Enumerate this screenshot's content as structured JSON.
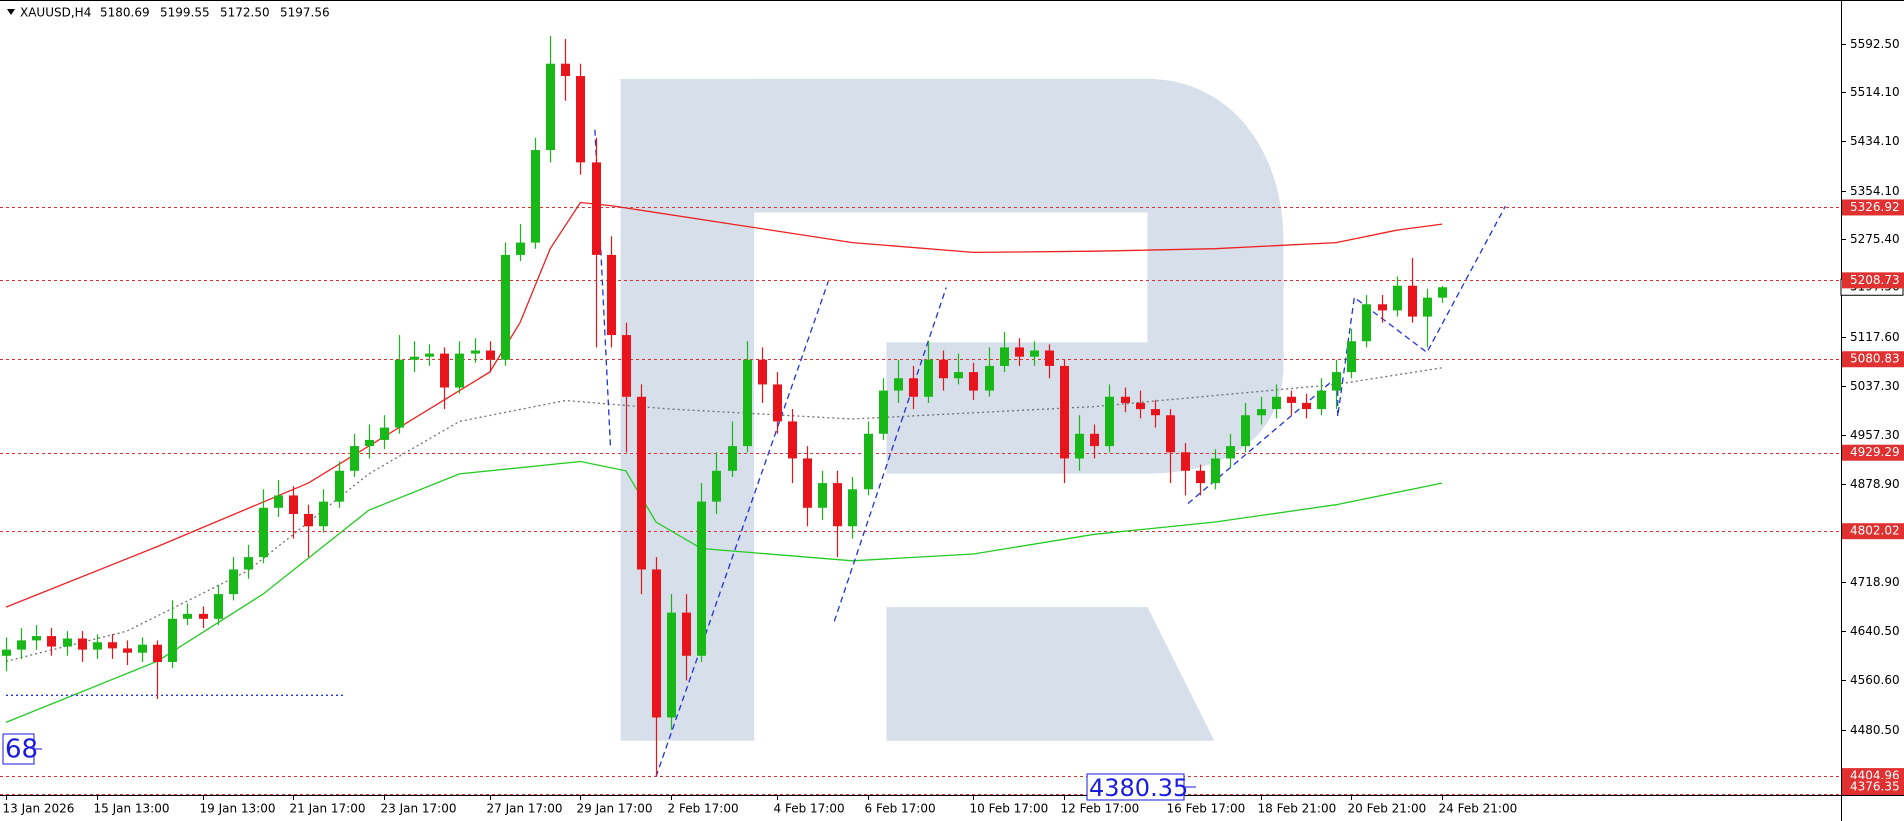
{
  "chart_data": {
    "type": "candlestick",
    "title": "XAUUSD,H4",
    "header_values": [
      "5180.69",
      "5199.55",
      "5172.50",
      "5197.56"
    ],
    "categories": [
      "13 Jan 2026",
      null,
      null,
      null,
      null,
      null,
      "15 Jan 13:00",
      null,
      null,
      null,
      null,
      null,
      null,
      "19 Jan 13:00",
      null,
      null,
      null,
      null,
      null,
      "21 Jan 17:00",
      null,
      null,
      null,
      null,
      null,
      "23 Jan 17:00",
      null,
      null,
      null,
      null,
      null,
      null,
      "27 Jan 17:00",
      null,
      null,
      null,
      null,
      null,
      "29 Jan 17:00",
      null,
      null,
      null,
      null,
      null,
      "2 Feb 17:00",
      null,
      null,
      null,
      null,
      null,
      null,
      "4 Feb 17:00",
      null,
      null,
      null,
      null,
      null,
      "6 Feb 17:00",
      null,
      null,
      null,
      null,
      null,
      null,
      "10 Feb 17:00",
      null,
      null,
      null,
      null,
      null,
      "12 Feb 17:00",
      null,
      null,
      null,
      null,
      null,
      null,
      "16 Feb 17:00",
      null,
      null,
      null,
      null,
      null,
      "18 Feb 21:00",
      null,
      null,
      null,
      null,
      null,
      "20 Feb 21:00",
      null,
      null,
      null,
      null,
      null,
      "24 Feb 21:00"
    ],
    "open": [
      4600,
      4610,
      4625,
      4632,
      4615,
      4628,
      4610,
      4622,
      4612,
      4605,
      4618,
      4590,
      4660,
      4668,
      4660,
      4700,
      4740,
      4760,
      4840,
      4860,
      4830,
      4810,
      4850,
      4900,
      4940,
      4950,
      4970,
      5080,
      5085,
      5090,
      5035,
      5090,
      5095,
      5080,
      5250,
      5270,
      5420,
      5560,
      5540,
      5400,
      5250,
      5120,
      5020,
      4740,
      4500,
      4670,
      4600,
      4850,
      4900,
      4940,
      5080,
      5040,
      4980,
      4920,
      4840,
      4880,
      4810,
      4870,
      4960,
      5030,
      5050,
      5020,
      5080,
      5050,
      5060,
      5030,
      5070,
      5100,
      5085,
      5095,
      5070,
      4920,
      4960,
      4940,
      5020,
      5010,
      5000,
      4990,
      4930,
      4900,
      4880,
      4920,
      4940,
      4990,
      5000,
      5020,
      5010,
      5000,
      5030,
      5060,
      5110,
      5170,
      5160,
      5200,
      5150,
      5180.69
    ],
    "high": [
      4630,
      4645,
      4650,
      4645,
      4640,
      4640,
      4635,
      4635,
      4625,
      4630,
      4625,
      4690,
      4685,
      4680,
      4715,
      4760,
      4780,
      4870,
      4885,
      4875,
      4845,
      4870,
      4915,
      4960,
      4975,
      4990,
      5120,
      5110,
      5105,
      5100,
      5110,
      5115,
      5110,
      5270,
      5300,
      5440,
      5605,
      5600,
      5560,
      5440,
      5280,
      5140,
      5040,
      4760,
      4700,
      4700,
      4880,
      4930,
      4980,
      5110,
      5100,
      5060,
      5000,
      4940,
      4900,
      4900,
      4890,
      4980,
      5050,
      5080,
      5070,
      5110,
      5095,
      5090,
      5075,
      5100,
      5125,
      5115,
      5110,
      5105,
      5080,
      4990,
      4975,
      5040,
      5035,
      5030,
      5015,
      5000,
      4945,
      4910,
      4935,
      4960,
      5010,
      5020,
      5040,
      5030,
      5025,
      5050,
      5080,
      5130,
      5185,
      5185,
      5215,
      5245,
      5195,
      5199.55
    ],
    "low": [
      4575,
      4595,
      4610,
      4600,
      4600,
      4590,
      4595,
      4595,
      4585,
      4590,
      4530,
      4580,
      4650,
      4645,
      4650,
      4690,
      4725,
      4750,
      4825,
      4790,
      4760,
      4800,
      4840,
      4890,
      4920,
      4935,
      4960,
      5060,
      5070,
      5000,
      5025,
      5075,
      5060,
      5070,
      5240,
      5260,
      5400,
      5500,
      5380,
      5100,
      5100,
      4930,
      4700,
      4405,
      4480,
      4560,
      4590,
      4830,
      4890,
      4930,
      5010,
      4960,
      4880,
      4810,
      4820,
      4760,
      4790,
      4860,
      4950,
      5010,
      5000,
      5010,
      5030,
      5040,
      5015,
      5020,
      5060,
      5070,
      5070,
      5050,
      4880,
      4900,
      4920,
      4930,
      4995,
      4985,
      4970,
      4880,
      4860,
      4860,
      4870,
      4905,
      4930,
      4975,
      4985,
      4990,
      4985,
      4990,
      5000,
      5050,
      5100,
      5140,
      5150,
      5140,
      5100,
      5172.5
    ],
    "close": [
      4610,
      4625,
      4632,
      4615,
      4628,
      4610,
      4622,
      4612,
      4605,
      4618,
      4590,
      4660,
      4668,
      4660,
      4700,
      4740,
      4760,
      4840,
      4860,
      4830,
      4810,
      4850,
      4900,
      4940,
      4950,
      4970,
      5080,
      5085,
      5090,
      5035,
      5090,
      5095,
      5080,
      5250,
      5270,
      5420,
      5560,
      5540,
      5400,
      5250,
      5120,
      5020,
      4740,
      4500,
      4670,
      4600,
      4850,
      4900,
      4940,
      5080,
      5040,
      4980,
      4920,
      4840,
      4880,
      4810,
      4870,
      4960,
      5030,
      5050,
      5020,
      5080,
      5050,
      5060,
      5030,
      5070,
      5100,
      5085,
      5095,
      5070,
      4920,
      4960,
      4940,
      5020,
      5010,
      5000,
      4990,
      4930,
      4900,
      4880,
      4920,
      4940,
      4990,
      5000,
      5020,
      5010,
      5000,
      5030,
      5060,
      5110,
      5170,
      5160,
      5200,
      5150,
      5180.69,
      5197.56
    ],
    "up_color": "#17b817",
    "down_color": "#e8141c",
    "lines": [
      {
        "color": "#ee2020",
        "style": "solid",
        "x": [
          0,
          10,
          20,
          28,
          32,
          34,
          36,
          38,
          40,
          48,
          56,
          64,
          72,
          80,
          88,
          92,
          95
        ],
        "values": [
          4679,
          4777,
          4880,
          5000,
          5060,
          5140,
          5260,
          5335,
          5330,
          5300,
          5270,
          5254,
          5256,
          5260,
          5270,
          5290,
          5300
        ]
      },
      {
        "color": "#22cc22",
        "style": "solid",
        "x": [
          0,
          10,
          17,
          24,
          30,
          38,
          41,
          43,
          46,
          56,
          64,
          72,
          80,
          88,
          95
        ],
        "values": [
          4492,
          4591,
          4700,
          4836,
          4895,
          4915,
          4900,
          4817,
          4774,
          4754,
          4765,
          4797,
          4817,
          4845,
          4880
        ]
      },
      {
        "color": "#707070",
        "style": "dotted",
        "x": [
          0,
          8,
          16,
          24,
          30,
          37,
          44,
          56,
          72,
          88,
          95
        ],
        "values": [
          4591,
          4640,
          4738,
          4895,
          4980,
          5014,
          5000,
          4984,
          5004,
          5040,
          5067
        ]
      },
      {
        "color": "#2233dd",
        "style": "dashed",
        "x": [
          38.96,
          40
        ],
        "values": [
          5453,
          4935
        ]
      },
      {
        "color": "#2233dd",
        "style": "dashed",
        "x": [
          43,
          54.4
        ],
        "values": [
          4404,
          5207
        ]
      },
      {
        "color": "#2233dd",
        "style": "dashed",
        "x": [
          54.8,
          62.2
        ],
        "values": [
          4656,
          5197
        ]
      },
      {
        "color": "#2233dd",
        "style": "dashed",
        "x": [
          78.2,
          88.1,
          88.1,
          89.2,
          94,
          99.2
        ],
        "values": [
          4847,
          5053,
          4988,
          5181,
          5092,
          5329
        ]
      },
      {
        "color": "#2233dd",
        "style": "dotted",
        "x": [
          0,
          22.5
        ],
        "values": [
          4536,
          4536
        ]
      }
    ],
    "levels": [
      5326.92,
      5208.73,
      5080.83,
      4929.29,
      4802.02,
      4404.96,
      4376.35
    ],
    "level_color": "#e03030",
    "annotations": [
      "68",
      "4380.35"
    ],
    "annotation_color": "#1a1ae0",
    "xlim": [
      -0.4,
      121.4
    ],
    "ylim": [
      4374.3,
      5663.3
    ],
    "yticks": [
      {
        "value": 5592.5,
        "label": "5592.50"
      },
      {
        "value": 5514.1,
        "label": "5514.10"
      },
      {
        "value": 5434.1,
        "label": "5434.10"
      },
      {
        "value": 5354.1,
        "label": "5354.10"
      },
      {
        "value": 5275.4,
        "label": "5275.40"
      },
      {
        "value": 5117.6,
        "label": "5117.60"
      },
      {
        "value": 5037.3,
        "label": "5037.30"
      },
      {
        "value": 4957.3,
        "label": "4957.30"
      },
      {
        "value": 4878.9,
        "label": "4878.90"
      },
      {
        "value": 4718.9,
        "label": "4718.90"
      },
      {
        "value": 4640.5,
        "label": "4640.50"
      },
      {
        "value": 4560.6,
        "label": "4560.60"
      },
      {
        "value": 4480.5,
        "label": "4480.50"
      }
    ]
  }
}
